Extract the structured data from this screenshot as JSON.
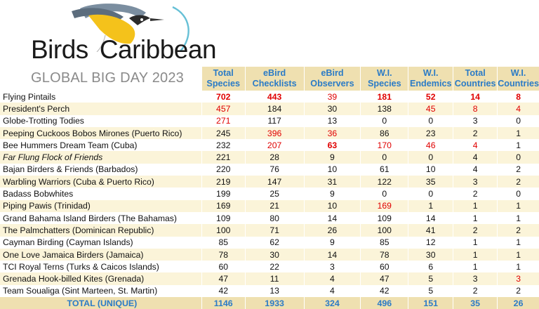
{
  "brand": {
    "word1": "Birds",
    "word2": "Caribbean"
  },
  "event_title": "GLOBAL BIG DAY 2023",
  "headers": [
    [
      "Total",
      "Species"
    ],
    [
      "eBird",
      "Checklists"
    ],
    [
      "eBird",
      "Observers"
    ],
    [
      "W.I.",
      "Species"
    ],
    [
      "W.I.",
      "Endemics"
    ],
    [
      "Total",
      "Countries"
    ],
    [
      "W.I.",
      "Countries"
    ]
  ],
  "colors": {
    "header_bg": "#efe0b0",
    "header_text": "#2b7bc6",
    "highlight": "#e00000",
    "stripe": "#fbf4d9"
  },
  "rows": [
    {
      "name": "Flying Pintails",
      "italic": false,
      "values": [
        "702",
        "443",
        "39",
        "181",
        "52",
        "14",
        "8"
      ],
      "red": [
        0,
        1,
        2,
        3,
        4,
        5,
        6
      ],
      "bold": [
        0,
        1,
        3,
        4,
        5,
        6
      ]
    },
    {
      "name": "President's Perch",
      "italic": false,
      "values": [
        "457",
        "184",
        "30",
        "138",
        "45",
        "8",
        "4"
      ],
      "red": [
        0,
        4,
        5,
        6
      ],
      "bold": []
    },
    {
      "name": "Globe-Trotting Todies",
      "italic": false,
      "values": [
        "271",
        "117",
        "13",
        "0",
        "0",
        "3",
        "0"
      ],
      "red": [
        0
      ],
      "bold": []
    },
    {
      "name": "Peeping Cuckoos Bobos Mirones (Puerto Rico)",
      "italic": false,
      "values": [
        "245",
        "396",
        "36",
        "86",
        "23",
        "2",
        "1"
      ],
      "red": [
        1,
        2
      ],
      "bold": []
    },
    {
      "name": "Bee Hummers Dream Team (Cuba)",
      "italic": false,
      "values": [
        "232",
        "207",
        "63",
        "170",
        "46",
        "4",
        "1"
      ],
      "red": [
        1,
        2,
        3,
        4,
        5
      ],
      "bold": [
        2
      ]
    },
    {
      "name": "Far Flung Flock of Friends",
      "italic": true,
      "values": [
        "221",
        "28",
        "9",
        "0",
        "0",
        "4",
        "0"
      ],
      "red": [],
      "bold": []
    },
    {
      "name": "Bajan Birders & Friends (Barbados)",
      "italic": false,
      "values": [
        "220",
        "76",
        "10",
        "61",
        "10",
        "4",
        "2"
      ],
      "red": [],
      "bold": []
    },
    {
      "name": "Warbling Warriors (Cuba & Puerto Rico)",
      "italic": false,
      "values": [
        "219",
        "147",
        "31",
        "122",
        "35",
        "3",
        "2"
      ],
      "red": [],
      "bold": []
    },
    {
      "name": "Badass Bobwhites",
      "italic": false,
      "values": [
        "199",
        "25",
        "9",
        "0",
        "0",
        "2",
        "0"
      ],
      "red": [],
      "bold": []
    },
    {
      "name": "Piping Pawis (Trinidad)",
      "italic": false,
      "values": [
        "169",
        "21",
        "10",
        "169",
        "1",
        "1",
        "1"
      ],
      "red": [
        3
      ],
      "bold": []
    },
    {
      "name": "Grand Bahama Island Birders (The Bahamas)",
      "italic": false,
      "values": [
        "109",
        "80",
        "14",
        "109",
        "14",
        "1",
        "1"
      ],
      "red": [],
      "bold": []
    },
    {
      "name": "The Palmchatters (Dominican Republic)",
      "italic": false,
      "values": [
        "100",
        "71",
        "26",
        "100",
        "41",
        "2",
        "2"
      ],
      "red": [],
      "bold": []
    },
    {
      "name": "Cayman Birding (Cayman Islands)",
      "italic": false,
      "values": [
        "85",
        "62",
        "9",
        "85",
        "12",
        "1",
        "1"
      ],
      "red": [],
      "bold": []
    },
    {
      "name": "One Love Jamaica Birders (Jamaica)",
      "italic": false,
      "values": [
        "78",
        "30",
        "14",
        "78",
        "30",
        "1",
        "1"
      ],
      "red": [],
      "bold": []
    },
    {
      "name": "TCI Royal Terns (Turks & Caicos Islands)",
      "italic": false,
      "values": [
        "60",
        "22",
        "3",
        "60",
        "6",
        "1",
        "1"
      ],
      "red": [],
      "bold": []
    },
    {
      "name": "Grenada Hook-billed Kites (Grenada)",
      "italic": false,
      "values": [
        "47",
        "11",
        "4",
        "47",
        "5",
        "3",
        "3"
      ],
      "red": [
        6
      ],
      "bold": []
    },
    {
      "name": "Team Soualiga (Sint Marteen, St. Martin)",
      "italic": false,
      "values": [
        "42",
        "13",
        "4",
        "42",
        "5",
        "2",
        "2"
      ],
      "red": [],
      "bold": []
    }
  ],
  "total": {
    "label": "TOTAL (UNIQUE)",
    "values": [
      "1146",
      "1933",
      "324",
      "496",
      "151",
      "35",
      "26"
    ]
  }
}
